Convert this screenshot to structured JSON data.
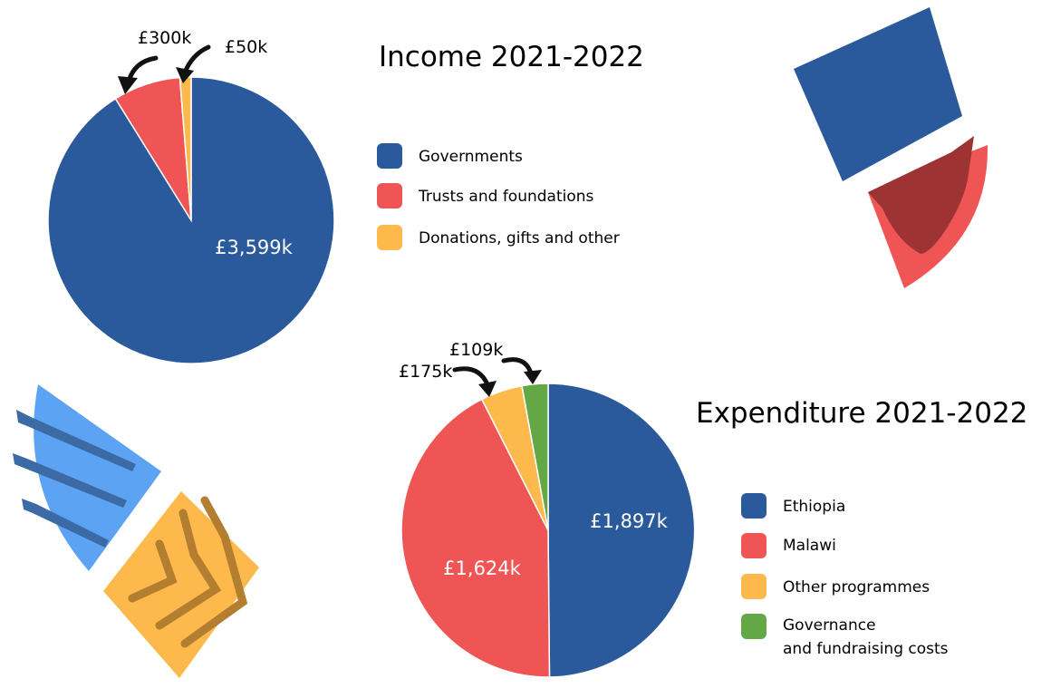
{
  "chart_data": [
    {
      "type": "pie",
      "title": "Income 2021-2022",
      "slices": [
        {
          "label": "Governments",
          "value": 3599,
          "value_label": "£3,599k",
          "color": "#2a5a9c"
        },
        {
          "label": "Trusts and foundations",
          "value": 300,
          "value_label": "£300k",
          "color": "#ef5555"
        },
        {
          "label": "Donations, gifts and other",
          "value": 50,
          "value_label": "£50k",
          "color": "#fdb94c"
        }
      ]
    },
    {
      "type": "pie",
      "title": "Expenditure 2021-2022",
      "slices": [
        {
          "label": "Ethiopia",
          "value": 1897,
          "value_label": "£1,897k",
          "color": "#2a5a9c"
        },
        {
          "label": "Malawi",
          "value": 1624,
          "value_label": "£1,624k",
          "color": "#ef5555"
        },
        {
          "label": "Other programmes",
          "value": 175,
          "value_label": "£175k",
          "color": "#fdb94c"
        },
        {
          "label": "Governance",
          "label_line2": "and fundraising costs",
          "value": 109,
          "value_label": "£109k",
          "color": "#63a845"
        }
      ]
    }
  ],
  "colors": {
    "arrow": "#111111",
    "deco_blue": "#2a5a9c",
    "deco_light_blue": "#5da3f4",
    "deco_dark_red": "#9e3333",
    "deco_red": "#ef5555",
    "deco_orange": "#fdb94c",
    "deco_brown": "#b37e2f",
    "deco_stripe_blue": "#3b6aa4"
  }
}
